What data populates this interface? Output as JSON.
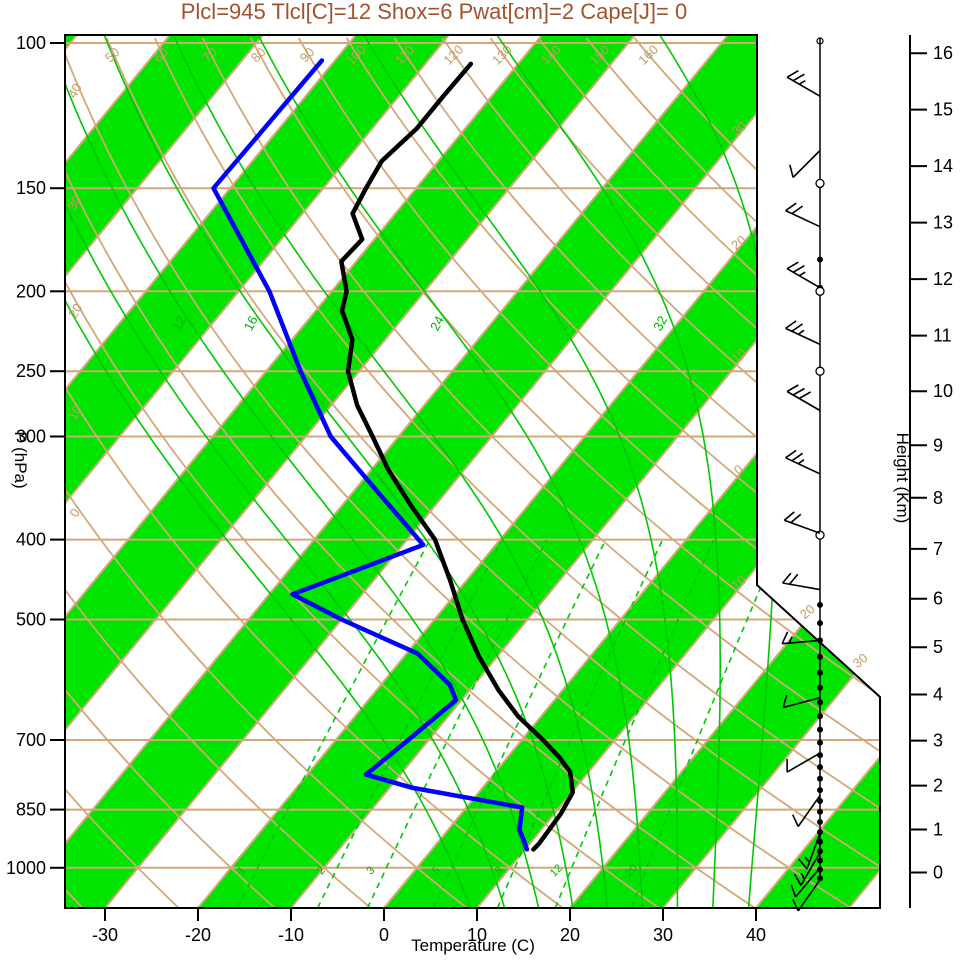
{
  "title": "Plcl=945 Tlcl[C]=12 Shox=6 Pwat[cm]=2 Cape[J]= 0",
  "colors": {
    "title_text": "#a0522d",
    "tan_lines": "#d2a878",
    "tan_labels": "#c69a62",
    "green_lines": "#00c800",
    "green_stripe": "#00e400",
    "temperature_curve": "#000000",
    "dewpoint_curve": "#0000ff",
    "axis": "#000000"
  },
  "axes": {
    "pressure_label": "P (hPa)",
    "temperature_label": "Temperature (C)",
    "height_label": "Height (Km)",
    "pressure_ticks_hpa": [
      100,
      150,
      200,
      250,
      300,
      400,
      500,
      700,
      850,
      1000
    ],
    "temperature_ticks_c": [
      -30,
      -20,
      -10,
      0,
      10,
      20,
      30,
      40
    ],
    "height_ticks_km": [
      0,
      1,
      2,
      3,
      4,
      5,
      6,
      7,
      8,
      9,
      10,
      11,
      12,
      13,
      14,
      15,
      16
    ]
  },
  "chart_data": {
    "type": "skewt_logp_sounding",
    "derived_indices": {
      "plcl_hpa": 945,
      "tlcl_c": 12,
      "showalter_index": 6,
      "precipitable_water_cm": 2,
      "cape_j": 0
    },
    "isotherms_c": {
      "min": -120,
      "max": 50,
      "step": 10
    },
    "green_band_start_temps_c": [
      -120,
      -100,
      -80,
      -60,
      -40,
      -20,
      0,
      20,
      40
    ],
    "dry_adiabats_theta_c": {
      "min": -40,
      "max": 160,
      "step": 10
    },
    "dry_adiabat_top_labels_c": [
      50,
      60,
      70,
      80,
      90,
      100,
      110,
      120,
      130,
      140,
      150,
      160
    ],
    "dry_adiabat_left_labels_c": [
      0,
      10,
      20,
      30,
      40
    ],
    "isotherm_right_labels_c": [
      -30,
      -20,
      -10,
      0,
      10,
      20,
      30
    ],
    "moist_adiabats_thetaw_c": [
      4,
      8,
      12,
      16,
      20,
      24,
      28,
      32,
      36
    ],
    "moist_adiabat_label_values_c": [
      12,
      16,
      24,
      32
    ],
    "mixing_ratio_lines_g_per_kg": [
      1,
      2,
      3,
      5,
      8,
      12,
      20
    ],
    "temperature_profile": {
      "pressure_hpa": [
        950,
        935,
        860,
        810,
        765,
        735,
        700,
        655,
        610,
        554,
        500,
        448,
        400,
        363,
        329,
        300,
        275,
        250,
        229,
        211,
        200,
        184,
        173,
        161,
        150,
        139,
        127,
        116,
        106
      ],
      "temperature_c": [
        10.9,
        11.0,
        10.7,
        10.1,
        8.0,
        5.6,
        2.3,
        -2.5,
        -6.8,
        -12.0,
        -17.0,
        -21.8,
        -27.0,
        -32.7,
        -38.2,
        -42.8,
        -47.2,
        -51.2,
        -53.5,
        -57.2,
        -58.4,
        -61.6,
        -61.3,
        -64.6,
        -65.4,
        -66.1,
        -65.2,
        -65.2,
        -65.1
      ]
    },
    "dewpoint_profile": {
      "pressure_hpa": [
        950,
        925,
        900,
        845,
        800,
        771,
        700,
        626,
        600,
        550,
        500,
        466,
        406,
        350,
        300,
        250,
        200,
        150,
        105
      ],
      "dewpoint_c": [
        10.2,
        9.0,
        7.7,
        6.0,
        -7.5,
        -13.7,
        -12.2,
        -10.6,
        -12.6,
        -18.8,
        -30.0,
        -37.5,
        -27.8,
        -37.4,
        -47.3,
        -56.3,
        -66.7,
        -81.8,
        -81.4
      ]
    },
    "wind_profile": {
      "barbs": [
        {
          "pressure_hpa": 116,
          "direction_deg": 300,
          "speed_kt": 25
        },
        {
          "pressure_hpa": 135,
          "direction_deg": 225,
          "speed_kt": 10
        },
        {
          "pressure_hpa": 167,
          "direction_deg": 295,
          "speed_kt": 20
        },
        {
          "pressure_hpa": 198,
          "direction_deg": 300,
          "speed_kt": 25
        },
        {
          "pressure_hpa": 232,
          "direction_deg": 295,
          "speed_kt": 25
        },
        {
          "pressure_hpa": 279,
          "direction_deg": 300,
          "speed_kt": 30
        },
        {
          "pressure_hpa": 333,
          "direction_deg": 295,
          "speed_kt": 25
        },
        {
          "pressure_hpa": 393,
          "direction_deg": 290,
          "speed_kt": 20
        },
        {
          "pressure_hpa": 460,
          "direction_deg": 280,
          "speed_kt": 20
        },
        {
          "pressure_hpa": 530,
          "direction_deg": 265,
          "speed_kt": 15
        },
        {
          "pressure_hpa": 622,
          "direction_deg": 255,
          "speed_kt": 10
        },
        {
          "pressure_hpa": 726,
          "direction_deg": 240,
          "speed_kt": 10
        },
        {
          "pressure_hpa": 817,
          "direction_deg": 215,
          "speed_kt": 10
        },
        {
          "pressure_hpa": 908,
          "direction_deg": 200,
          "speed_kt": 15
        },
        {
          "pressure_hpa": 958,
          "direction_deg": 210,
          "speed_kt": 15
        },
        {
          "pressure_hpa": 1000,
          "direction_deg": 220,
          "speed_kt": 10
        },
        {
          "pressure_hpa": 1034,
          "direction_deg": 215,
          "speed_kt": 10
        }
      ],
      "dot_levels_hpa": [
        1030,
        1005,
        980,
        955,
        930,
        905,
        880,
        855,
        830,
        805,
        780,
        755,
        730,
        705,
        680,
        655,
        630,
        605,
        580,
        555,
        530,
        505,
        480,
        198,
        183
      ],
      "circle_levels_hpa": [
        148,
        200,
        250,
        395
      ]
    }
  }
}
